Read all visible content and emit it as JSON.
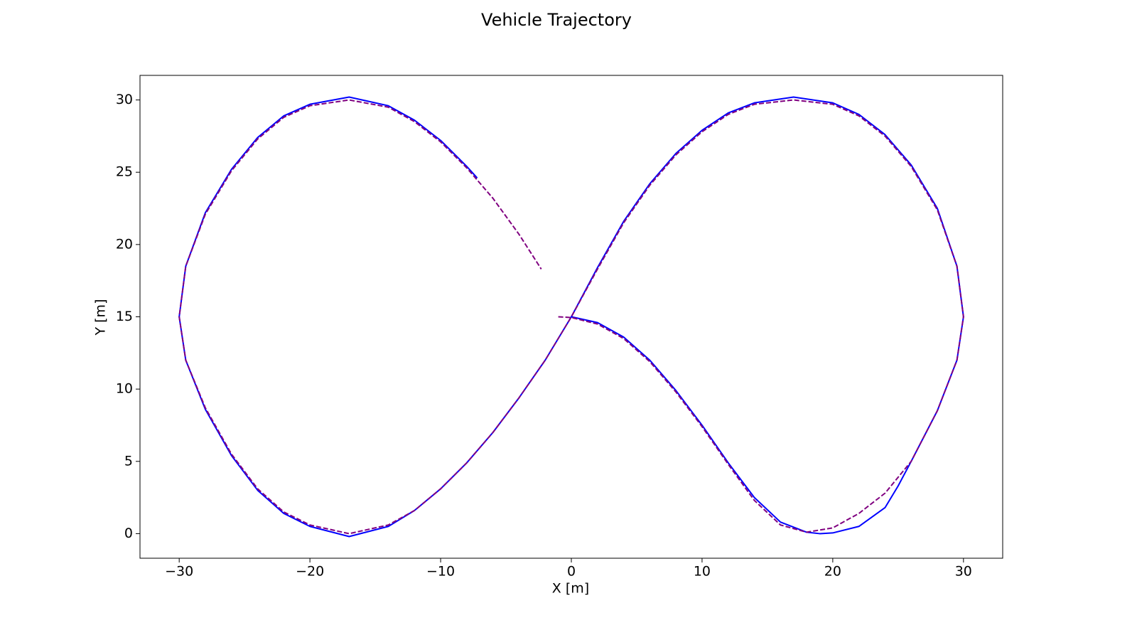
{
  "chart_data": {
    "type": "line",
    "title": "Vehicle Trajectory",
    "x_label": "X [m]",
    "y_label": "Y [m]",
    "xlim": [
      -33,
      33
    ],
    "ylim": [
      -1.7,
      31.7
    ],
    "xticks": [
      {
        "value": -30,
        "label": "−30"
      },
      {
        "value": -20,
        "label": "−20"
      },
      {
        "value": -10,
        "label": "−10"
      },
      0,
      10,
      20,
      30
    ],
    "yticks": [
      0,
      5,
      10,
      15,
      20,
      25,
      30
    ],
    "series": [
      {
        "color": "#0000ff",
        "dashed": false,
        "x": [
          0,
          2,
          4,
          6,
          8,
          10,
          12,
          14,
          16,
          18,
          19,
          20,
          22,
          24,
          25,
          26,
          28,
          29.5,
          30,
          29.5,
          28,
          26,
          24,
          22,
          20,
          17,
          14,
          12,
          10,
          8,
          6,
          4,
          2,
          0,
          -2,
          -4,
          -6,
          -8,
          -10,
          -12,
          -14,
          -17,
          -20,
          -22,
          -24,
          -26,
          -28,
          -29.5,
          -30,
          -29.5,
          -28,
          -26,
          -24,
          -22,
          -20,
          -17,
          -14,
          -12,
          -10,
          -8,
          -7.2
        ],
        "y": [
          15,
          14.6,
          13.6,
          12,
          9.9,
          7.5,
          4.9,
          2.5,
          0.8,
          0.1,
          0,
          0.05,
          0.5,
          1.8,
          3.3,
          5,
          8.5,
          12,
          15,
          18.5,
          22.5,
          25.5,
          27.6,
          29,
          29.8,
          30.2,
          29.8,
          29.1,
          27.9,
          26.3,
          24.2,
          21.6,
          18.4,
          15,
          12,
          9.4,
          7,
          4.9,
          3.1,
          1.6,
          0.5,
          -0.2,
          0.5,
          1.4,
          3,
          5.4,
          8.6,
          12,
          15,
          18.5,
          22.2,
          25.2,
          27.4,
          28.9,
          29.7,
          30.2,
          29.6,
          28.6,
          27.2,
          25.4,
          24.6
        ]
      },
      {
        "color": "#800080",
        "dashed": true,
        "x": [
          -1,
          0,
          2,
          4,
          6,
          8,
          10,
          12,
          14,
          16,
          18,
          20,
          22,
          24,
          26,
          28,
          29.5,
          30,
          29.5,
          28,
          26,
          24,
          22,
          20,
          17,
          14,
          12,
          10,
          8,
          6,
          4,
          2,
          0,
          -2,
          -4,
          -6,
          -8,
          -10,
          -12,
          -14,
          -17,
          -20,
          -22,
          -24,
          -26,
          -28,
          -29.5,
          -30,
          -29.5,
          -28,
          -26,
          -24,
          -22,
          -20,
          -17,
          -14,
          -12,
          -10,
          -8,
          -6,
          -4,
          -2.3
        ],
        "y": [
          15,
          14.95,
          14.5,
          13.5,
          11.9,
          9.8,
          7.4,
          4.8,
          2.3,
          0.6,
          0.1,
          0.4,
          1.4,
          2.8,
          5,
          8.5,
          12,
          15,
          18.5,
          22.4,
          25.4,
          27.5,
          28.9,
          29.7,
          30,
          29.7,
          29,
          27.8,
          26.2,
          24.1,
          21.5,
          18.3,
          15,
          12,
          9.4,
          7,
          4.9,
          3.1,
          1.6,
          0.6,
          0,
          0.6,
          1.5,
          3.1,
          5.5,
          8.7,
          12,
          15,
          18.5,
          22.1,
          25.1,
          27.3,
          28.8,
          29.6,
          30,
          29.5,
          28.5,
          27.1,
          25.3,
          23.2,
          20.7,
          18.3
        ]
      }
    ]
  }
}
